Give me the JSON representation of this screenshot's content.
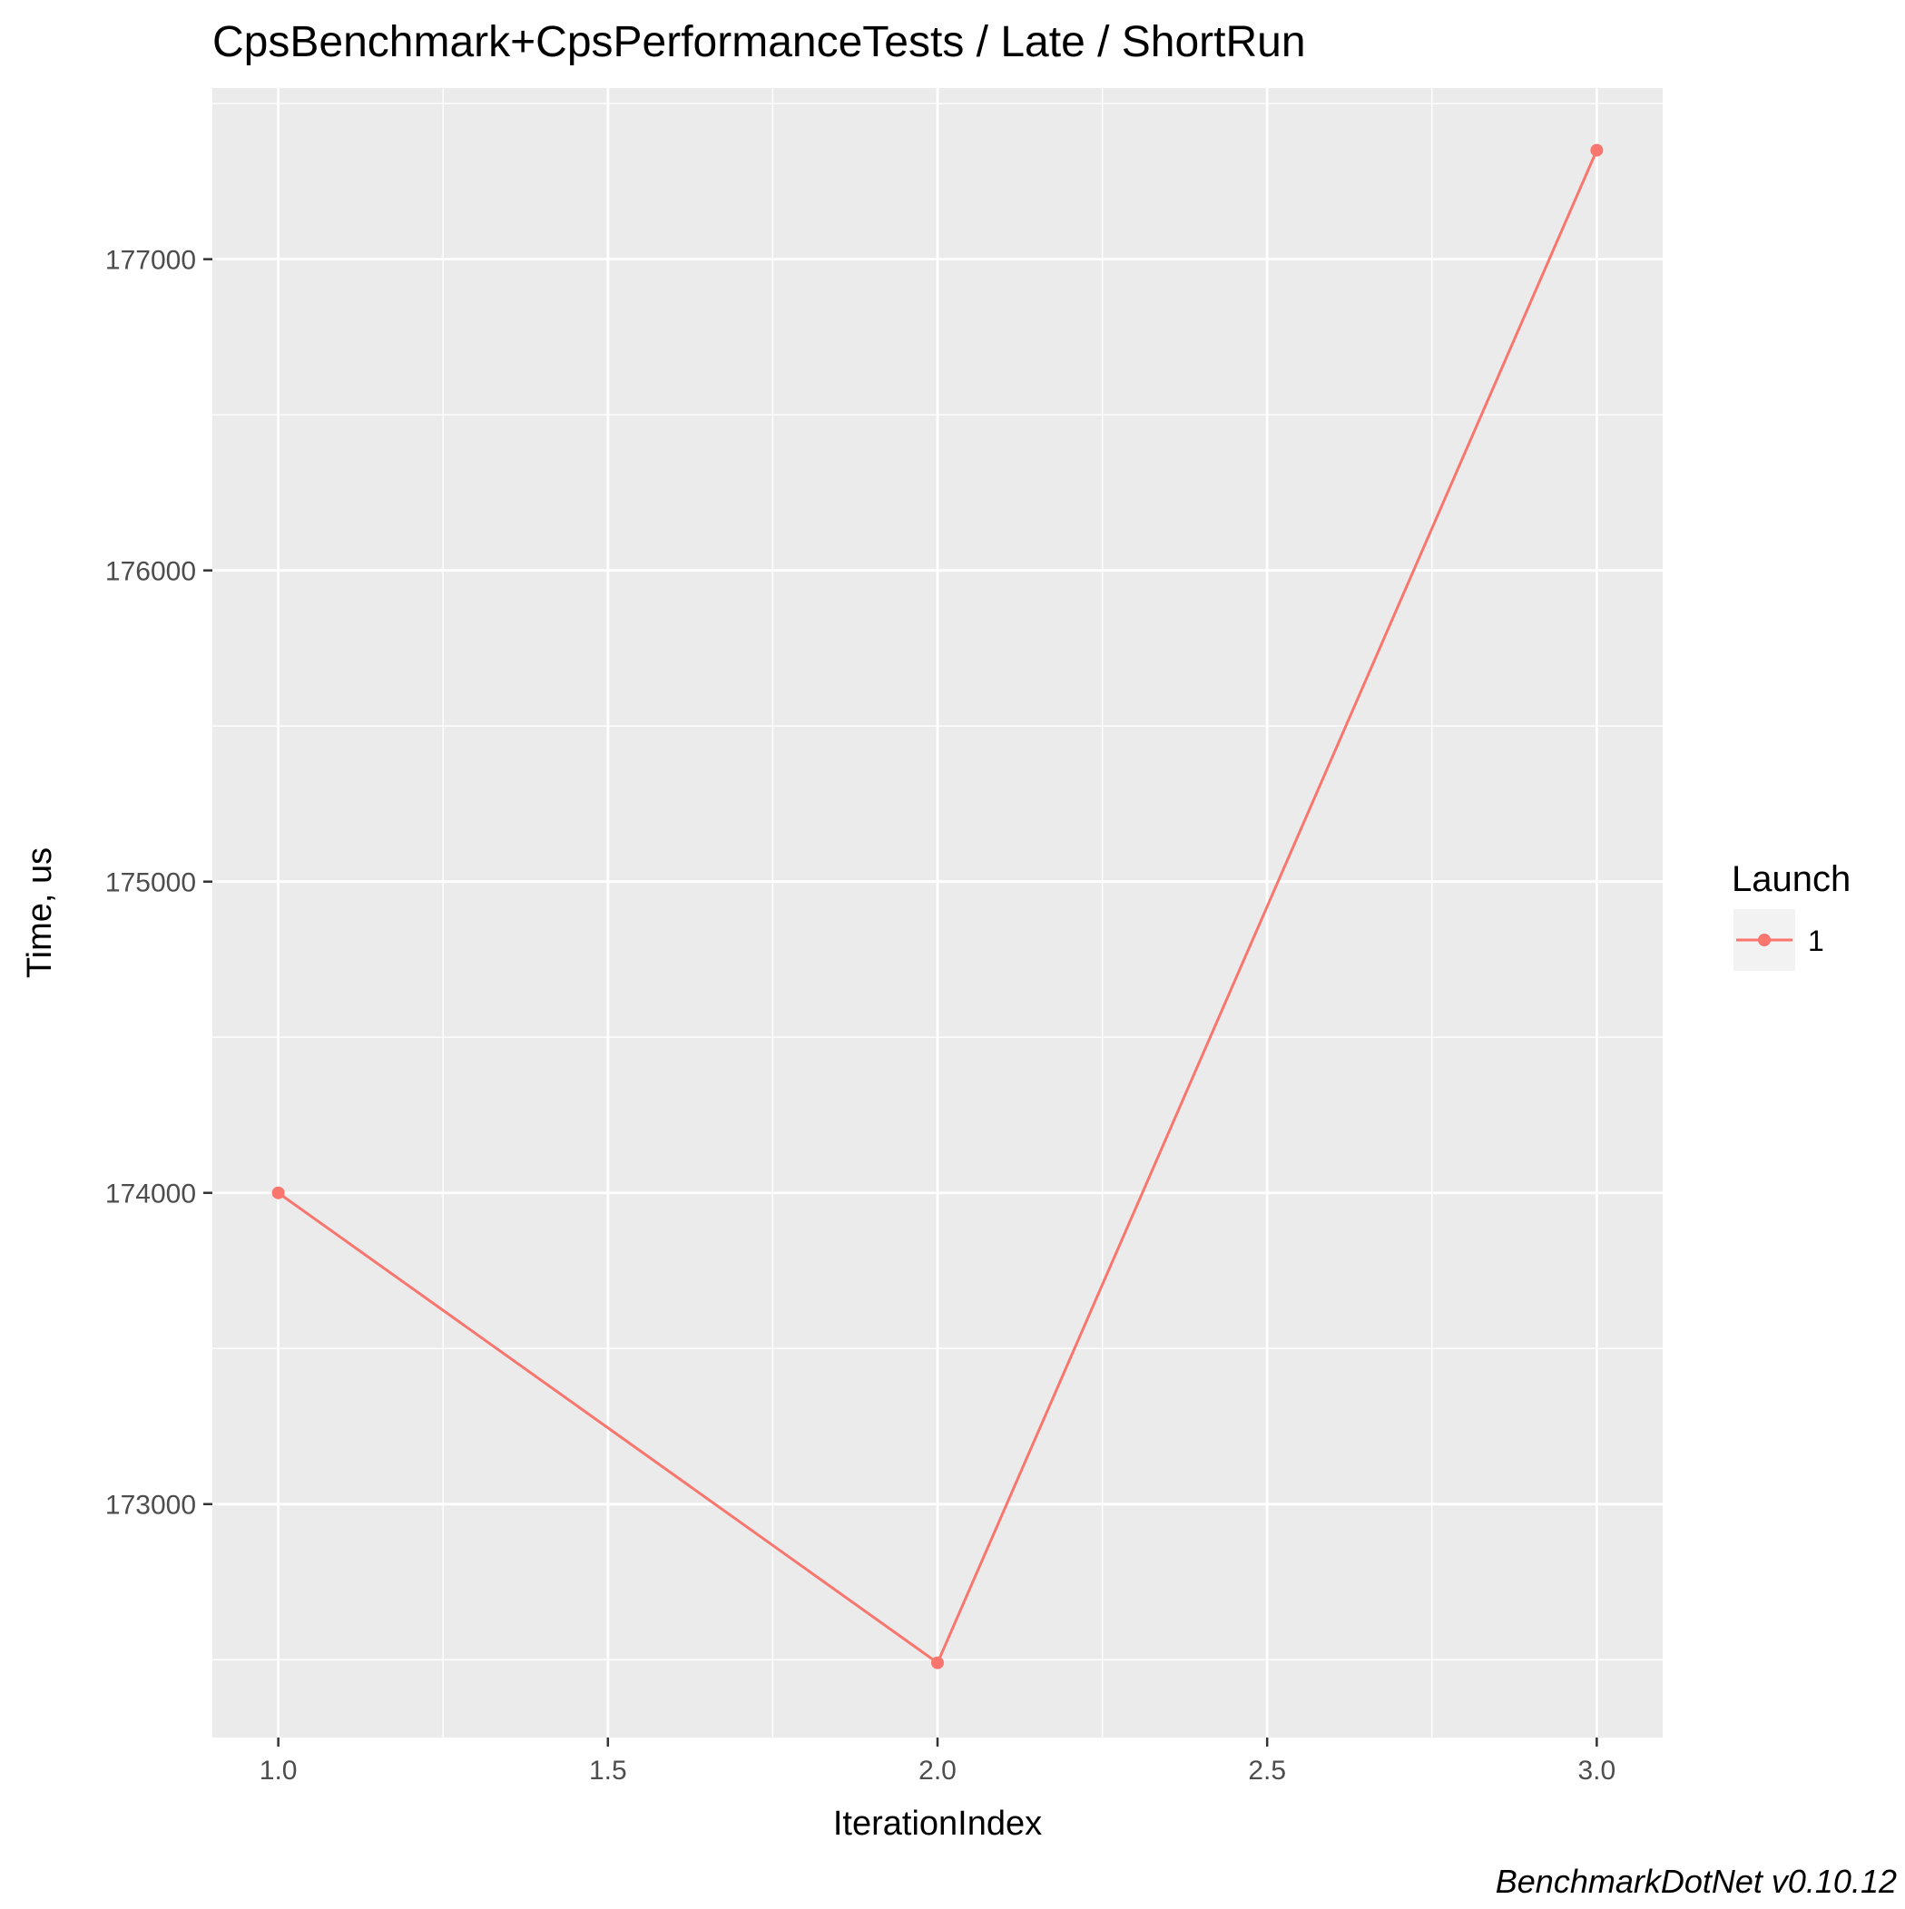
{
  "chart_data": {
    "type": "line",
    "title": "CpsBenchmark+CpsPerformanceTests / Late / ShortRun",
    "xlabel": "IterationIndex",
    "ylabel": "Time, us",
    "xlim": [
      0.9,
      3.1
    ],
    "ylim": [
      172250,
      177550
    ],
    "x_ticks": [
      1.0,
      1.5,
      2.0,
      2.5,
      3.0
    ],
    "x_tick_labels": [
      "1.0",
      "1.5",
      "2.0",
      "2.5",
      "3.0"
    ],
    "y_ticks": [
      173000,
      174000,
      175000,
      176000,
      177000
    ],
    "y_tick_labels": [
      "173000",
      "174000",
      "175000",
      "176000",
      "177000"
    ],
    "grid": true,
    "background": "#ebebeb",
    "legend": {
      "title": "Launch",
      "position": "right"
    },
    "series": [
      {
        "name": "1",
        "color": "#f8766d",
        "x": [
          1,
          2,
          3
        ],
        "values": [
          174000,
          172490,
          177350
        ]
      }
    ],
    "caption": "BenchmarkDotNet v0.10.12"
  }
}
